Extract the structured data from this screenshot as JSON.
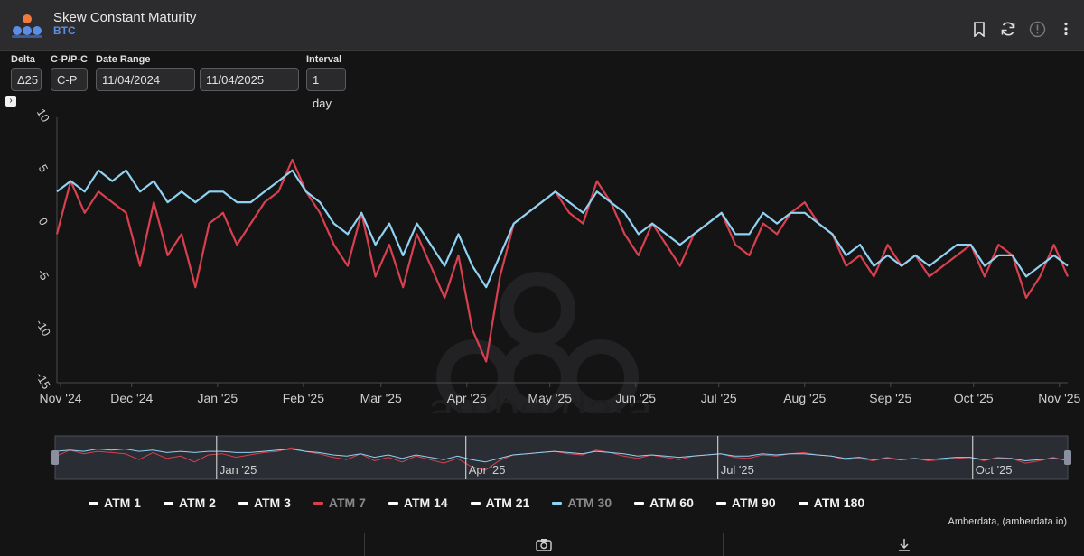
{
  "header": {
    "title": "Skew Constant Maturity",
    "subtitle": "BTC",
    "icons": [
      "bookmark-icon",
      "refresh-icon",
      "info-icon",
      "more-vertical-icon"
    ]
  },
  "controls": {
    "delta": {
      "label": "Delta",
      "value": "Δ25"
    },
    "cp": {
      "label": "C-P/P-C",
      "value": "C-P"
    },
    "date_range": {
      "label": "Date Range",
      "start": "11/04/2024",
      "end": "11/04/2025"
    },
    "interval": {
      "label": "Interval",
      "value": "1 day"
    }
  },
  "credit": "Amberdata, (amberdata.io)",
  "watermark": "amberdata",
  "colors": {
    "atm7": "#d9404f",
    "atm30": "#8fd3f4",
    "background": "#141414"
  },
  "chart_data": {
    "type": "line",
    "ylim": [
      -15,
      10
    ],
    "yticks": [
      "10",
      "5",
      "0",
      "-5",
      "-10",
      "-15"
    ],
    "xticks": [
      "Nov '24",
      "Dec '24",
      "Jan '25",
      "Feb '25",
      "Mar '25",
      "Apr '25",
      "May '25",
      "Jun '25",
      "Jul '25",
      "Aug '25",
      "Sep '25",
      "Oct '25",
      "Nov '25"
    ],
    "xlim": [
      "2024-11-04",
      "2025-11-04"
    ],
    "navigator_ticks": [
      "Jan '25",
      "Apr '25",
      "Jul '25",
      "Oct '25"
    ],
    "legend": [
      {
        "name": "ATM 1",
        "color": "#ffffff",
        "visible": true
      },
      {
        "name": "ATM 2",
        "color": "#ffffff",
        "visible": true
      },
      {
        "name": "ATM 3",
        "color": "#ffffff",
        "visible": true
      },
      {
        "name": "ATM 7",
        "color": "#d9404f",
        "visible": false
      },
      {
        "name": "ATM 14",
        "color": "#ffffff",
        "visible": true
      },
      {
        "name": "ATM 21",
        "color": "#ffffff",
        "visible": true
      },
      {
        "name": "ATM 30",
        "color": "#8fd3f4",
        "visible": false
      },
      {
        "name": "ATM 60",
        "color": "#ffffff",
        "visible": true
      },
      {
        "name": "ATM 90",
        "color": "#ffffff",
        "visible": true
      },
      {
        "name": "ATM 180",
        "color": "#ffffff",
        "visible": true
      }
    ],
    "series": [
      {
        "name": "ATM 7",
        "color": "#d9404f",
        "x": [
          "2024-11-04",
          "2024-11-09",
          "2024-11-14",
          "2024-11-19",
          "2024-11-24",
          "2024-11-29",
          "2024-12-04",
          "2024-12-09",
          "2024-12-14",
          "2024-12-19",
          "2024-12-24",
          "2024-12-29",
          "2025-01-03",
          "2025-01-08",
          "2025-01-13",
          "2025-01-18",
          "2025-01-23",
          "2025-01-28",
          "2025-02-02",
          "2025-02-07",
          "2025-02-12",
          "2025-02-17",
          "2025-02-22",
          "2025-02-27",
          "2025-03-04",
          "2025-03-09",
          "2025-03-14",
          "2025-03-19",
          "2025-03-24",
          "2025-03-29",
          "2025-04-03",
          "2025-04-08",
          "2025-04-13",
          "2025-04-18",
          "2025-04-23",
          "2025-04-28",
          "2025-05-03",
          "2025-05-08",
          "2025-05-13",
          "2025-05-18",
          "2025-05-23",
          "2025-05-28",
          "2025-06-02",
          "2025-06-07",
          "2025-06-12",
          "2025-06-17",
          "2025-06-22",
          "2025-06-27",
          "2025-07-02",
          "2025-07-07",
          "2025-07-12",
          "2025-07-17",
          "2025-07-22",
          "2025-07-27",
          "2025-08-01",
          "2025-08-06",
          "2025-08-11",
          "2025-08-16",
          "2025-08-21",
          "2025-08-26",
          "2025-08-31",
          "2025-09-05",
          "2025-09-10",
          "2025-09-15",
          "2025-09-20",
          "2025-09-25",
          "2025-09-30",
          "2025-10-05",
          "2025-10-10",
          "2025-10-15",
          "2025-10-20",
          "2025-10-25",
          "2025-10-30",
          "2025-11-04"
        ],
        "values": [
          -1,
          4,
          1,
          3,
          2,
          1,
          -4,
          2,
          -3,
          -1,
          -6,
          0,
          1,
          -2,
          0,
          2,
          3,
          6,
          3,
          1,
          -2,
          -4,
          1,
          -5,
          -2,
          -6,
          -1,
          -4,
          -7,
          -3,
          -10,
          -13,
          -5,
          0,
          1,
          2,
          3,
          1,
          0,
          4,
          2,
          -1,
          -3,
          0,
          -2,
          -4,
          -1,
          0,
          1,
          -2,
          -3,
          0,
          -1,
          1,
          2,
          0,
          -1,
          -4,
          -3,
          -5,
          -2,
          -4,
          -3,
          -5,
          -4,
          -3,
          -2,
          -5,
          -2,
          -3,
          -7,
          -5,
          -2,
          -5
        ]
      },
      {
        "name": "ATM 30",
        "color": "#8fd3f4",
        "x": [
          "2024-11-04",
          "2024-11-09",
          "2024-11-14",
          "2024-11-19",
          "2024-11-24",
          "2024-11-29",
          "2024-12-04",
          "2024-12-09",
          "2024-12-14",
          "2024-12-19",
          "2024-12-24",
          "2024-12-29",
          "2025-01-03",
          "2025-01-08",
          "2025-01-13",
          "2025-01-18",
          "2025-01-23",
          "2025-01-28",
          "2025-02-02",
          "2025-02-07",
          "2025-02-12",
          "2025-02-17",
          "2025-02-22",
          "2025-02-27",
          "2025-03-04",
          "2025-03-09",
          "2025-03-14",
          "2025-03-19",
          "2025-03-24",
          "2025-03-29",
          "2025-04-03",
          "2025-04-08",
          "2025-04-13",
          "2025-04-18",
          "2025-04-23",
          "2025-04-28",
          "2025-05-03",
          "2025-05-08",
          "2025-05-13",
          "2025-05-18",
          "2025-05-23",
          "2025-05-28",
          "2025-06-02",
          "2025-06-07",
          "2025-06-12",
          "2025-06-17",
          "2025-06-22",
          "2025-06-27",
          "2025-07-02",
          "2025-07-07",
          "2025-07-12",
          "2025-07-17",
          "2025-07-22",
          "2025-07-27",
          "2025-08-01",
          "2025-08-06",
          "2025-08-11",
          "2025-08-16",
          "2025-08-21",
          "2025-08-26",
          "2025-08-31",
          "2025-09-05",
          "2025-09-10",
          "2025-09-15",
          "2025-09-20",
          "2025-09-25",
          "2025-09-30",
          "2025-10-05",
          "2025-10-10",
          "2025-10-15",
          "2025-10-20",
          "2025-10-25",
          "2025-10-30",
          "2025-11-04"
        ],
        "values": [
          3,
          4,
          3,
          5,
          4,
          5,
          3,
          4,
          2,
          3,
          2,
          3,
          3,
          2,
          2,
          3,
          4,
          5,
          3,
          2,
          0,
          -1,
          1,
          -2,
          0,
          -3,
          0,
          -2,
          -4,
          -1,
          -4,
          -6,
          -3,
          0,
          1,
          2,
          3,
          2,
          1,
          3,
          2,
          1,
          -1,
          0,
          -1,
          -2,
          -1,
          0,
          1,
          -1,
          -1,
          1,
          0,
          1,
          1,
          0,
          -1,
          -3,
          -2,
          -4,
          -3,
          -4,
          -3,
          -4,
          -3,
          -2,
          -2,
          -4,
          -3,
          -3,
          -5,
          -4,
          -3,
          -4
        ]
      }
    ]
  }
}
